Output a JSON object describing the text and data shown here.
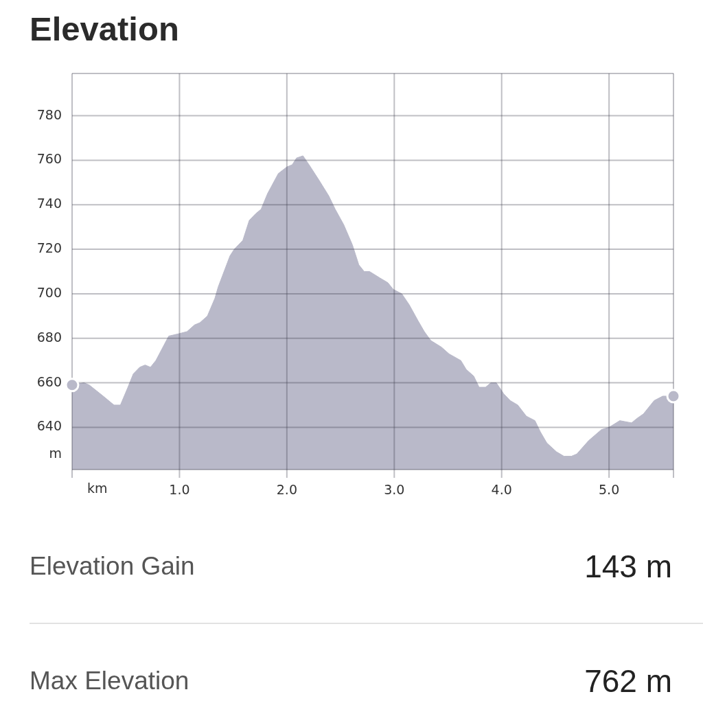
{
  "chart_data": [
    {
      "type": "area",
      "title": "Elevation",
      "xlabel": "km",
      "ylabel": "m",
      "xlim": [
        0,
        5.6
      ],
      "ylim": [
        621,
        799
      ],
      "xticks": [
        {
          "value": 0,
          "label": null
        },
        {
          "value": 1,
          "label": "1.0"
        },
        {
          "value": 2,
          "label": "2.0"
        },
        {
          "value": 3,
          "label": "3.0"
        },
        {
          "value": 4,
          "label": "4.0"
        },
        {
          "value": 5,
          "label": "5.0"
        }
      ],
      "yticks": [
        640,
        660,
        680,
        700,
        720,
        740,
        760,
        780
      ],
      "grid": true,
      "series": [
        {
          "type": "area",
          "color": "#b9b9c9",
          "x": [
            0,
            0.11,
            0.16,
            0.29,
            0.39,
            0.45,
            0.52,
            0.57,
            0.63,
            0.68,
            0.73,
            0.78,
            0.9,
            0.99,
            1.07,
            1.14,
            1.19,
            1.26,
            1.33,
            1.36,
            1.47,
            1.51,
            1.59,
            1.65,
            1.71,
            1.76,
            1.82,
            1.92,
            2.0,
            2.05,
            2.09,
            2.15,
            2.22,
            2.3,
            2.39,
            2.45,
            2.53,
            2.61,
            2.67,
            2.72,
            2.77,
            2.87,
            2.94,
            2.99,
            3.07,
            3.14,
            3.22,
            3.28,
            3.34,
            3.44,
            3.51,
            3.62,
            3.67,
            3.74,
            3.79,
            3.85,
            3.9,
            3.95,
            4.02,
            4.08,
            4.15,
            4.23,
            4.31,
            4.36,
            4.42,
            4.51,
            4.58,
            4.65,
            4.7,
            4.81,
            4.93,
            5.0,
            5.1,
            5.21,
            5.26,
            5.32,
            5.42,
            5.5,
            5.6
          ],
          "values": [
            659,
            660,
            659,
            654,
            650,
            650,
            658,
            664,
            667,
            668,
            667,
            670,
            681,
            682,
            683,
            686,
            687,
            690,
            698,
            703,
            717,
            720,
            724,
            733,
            736,
            738,
            745,
            754,
            757,
            758,
            761,
            762,
            757,
            751,
            744,
            738,
            731,
            722,
            713,
            710,
            710,
            707,
            705,
            702,
            700,
            695,
            688,
            683,
            679,
            676,
            673,
            670,
            666,
            663,
            658,
            658,
            660,
            660,
            655,
            652,
            650,
            645,
            643,
            638,
            633,
            629,
            627,
            627,
            628,
            634,
            639,
            640,
            643,
            642,
            644,
            646,
            652,
            654,
            654
          ]
        },
        {
          "type": "scatter",
          "marker": "circle",
          "color": "#b9b9c9",
          "x": [
            0,
            5.6
          ],
          "values": [
            659,
            654
          ]
        }
      ]
    },
    {
      "type": "other",
      "annotations": [
        "Elevation Gain",
        "143 m",
        "Max Elevation",
        "762 m"
      ]
    }
  ]
}
